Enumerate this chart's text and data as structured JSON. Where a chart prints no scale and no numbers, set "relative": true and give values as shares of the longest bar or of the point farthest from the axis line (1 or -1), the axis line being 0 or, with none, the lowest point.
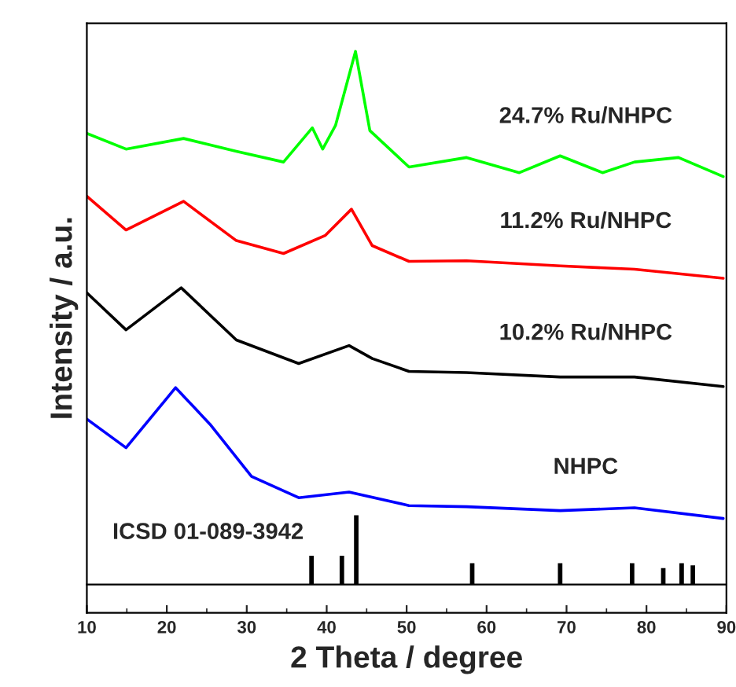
{
  "chart_data": [
    {
      "type": "line",
      "xlabel": "2 Theta / degree",
      "ylabel": "Intensity / a.u.",
      "relative": true,
      "xlim": [
        10,
        90
      ],
      "xticks": [
        10,
        20,
        30,
        40,
        50,
        60,
        70,
        80,
        90
      ],
      "grid": false,
      "legend": false,
      "marker": "none",
      "line_style": "solid",
      "series": [
        {
          "name": "24.7% Ru/NHPC",
          "color": "#00ff00",
          "x": [
            10,
            14.9,
            22.1,
            28.7,
            34.6,
            38.2,
            39.5,
            41.1,
            43.6,
            45.4,
            50.3,
            57.5,
            64.1,
            69.2,
            74.5,
            78.5,
            84.0,
            89.6
          ],
          "values": [
            0.854,
            0.826,
            0.845,
            0.822,
            0.803,
            0.864,
            0.826,
            0.868,
            1,
            0.859,
            0.794,
            0.811,
            0.784,
            0.814,
            0.784,
            0.803,
            0.811,
            0.777
          ]
        },
        {
          "name": "11.2% Ru/NHPC",
          "color": "#ff0000",
          "x": [
            10,
            14.9,
            22.1,
            28.7,
            34.6,
            39.8,
            43.1,
            45.7,
            50.3,
            57.5,
            69.2,
            78.5,
            89.6
          ],
          "values": [
            0.742,
            0.682,
            0.733,
            0.663,
            0.64,
            0.672,
            0.719,
            0.654,
            0.626,
            0.627,
            0.618,
            0.612,
            0.596
          ]
        },
        {
          "name": "10.2% Ru/NHPC",
          "color": "#000000",
          "x": [
            10,
            14.9,
            21.8,
            28.7,
            36.5,
            42.8,
            45.7,
            50.3,
            57.5,
            69.2,
            78.5,
            89.6
          ],
          "values": [
            0.57,
            0.504,
            0.579,
            0.486,
            0.444,
            0.476,
            0.453,
            0.43,
            0.428,
            0.42,
            0.42,
            0.403
          ]
        },
        {
          "name": "NHPC",
          "color": "#0000ff",
          "x": [
            10,
            14.9,
            21.1,
            25.4,
            30.6,
            36.5,
            42.8,
            50.3,
            57.5,
            69.2,
            78.5,
            89.6
          ],
          "values": [
            0.345,
            0.294,
            0.401,
            0.336,
            0.243,
            0.205,
            0.215,
            0.191,
            0.189,
            0.182,
            0.187,
            0.168
          ]
        }
      ]
    },
    {
      "type": "bar",
      "relative": true,
      "xlim": [
        10,
        90
      ],
      "series": [
        {
          "name": "ICSD 01-089-3942",
          "color": "#000000",
          "x": [
            38.1,
            41.9,
            43.7,
            58.2,
            69.2,
            78.2,
            82.1,
            84.4,
            85.8
          ],
          "values": [
            0.41,
            0.41,
            1,
            0.3,
            0.3,
            0.3,
            0.23,
            0.3,
            0.27
          ]
        }
      ]
    }
  ]
}
